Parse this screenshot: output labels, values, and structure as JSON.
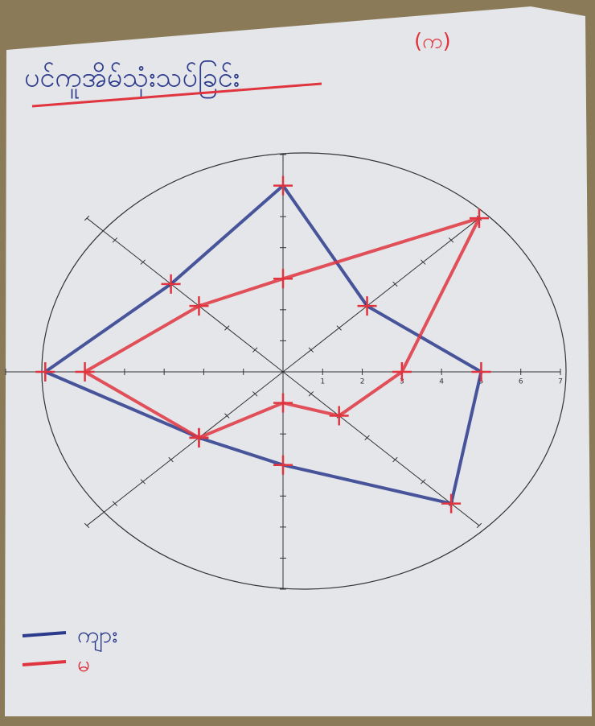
{
  "chart_data": {
    "type": "radar",
    "title": "ပင်ကူအိမ်သုံးသပ်ခြင်း",
    "subtitle": "(က)",
    "categories": [
      null,
      null,
      null,
      null,
      null,
      null,
      null,
      null
    ],
    "series": [
      {
        "name": "ကျား",
        "color": "#2c3a8c",
        "values": [
          6,
          3,
          5,
          6,
          3,
          3,
          6,
          4
        ]
      },
      {
        "name": "မ",
        "color": "#e0343f",
        "values": [
          3,
          7,
          3,
          2,
          1,
          3,
          5,
          3
        ]
      }
    ],
    "ylim": [
      0,
      7
    ],
    "yticks": [
      1,
      2,
      3,
      4,
      5,
      6,
      7
    ]
  }
}
